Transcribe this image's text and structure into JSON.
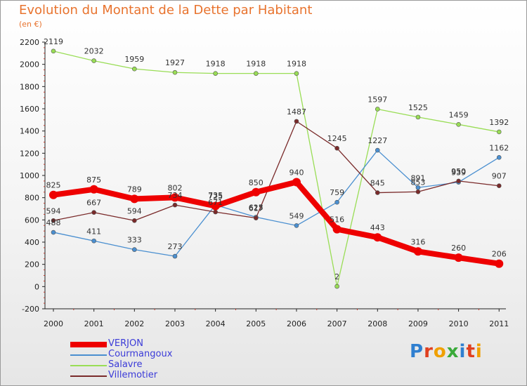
{
  "chart_data": {
    "type": "line",
    "title": "Evolution du Montant de la Dette par Habitant",
    "subtitle": "(en €)",
    "categories": [
      "2000",
      "2001",
      "2002",
      "2003",
      "2004",
      "2005",
      "2006",
      "2007",
      "2008",
      "2009",
      "2010",
      "2011"
    ],
    "ylim": [
      -200,
      2200
    ],
    "yticks": [
      -200,
      0,
      200,
      400,
      600,
      800,
      1000,
      1200,
      1400,
      1600,
      1800,
      2000,
      2200
    ],
    "grid": false,
    "legend_position": "bottom-left",
    "series": [
      {
        "name": "VERJON",
        "color": "#ee0000",
        "width": 8,
        "values": [
          825,
          875,
          789,
          802,
          725,
          850,
          940,
          516,
          443,
          316,
          260,
          206
        ]
      },
      {
        "name": "Courmangoux",
        "color": "#4a8fd0",
        "width": 1.3,
        "values": [
          488,
          411,
          333,
          273,
          735,
          625,
          549,
          759,
          1227,
          891,
          939,
          1162
        ]
      },
      {
        "name": "Salavre",
        "color": "#99dd55",
        "width": 1.3,
        "values": [
          2119,
          2032,
          1959,
          1927,
          1918,
          1918,
          1918,
          2,
          1597,
          1525,
          1459,
          1392
        ]
      },
      {
        "name": "Villemotier",
        "color": "#7a2a2a",
        "width": 1.3,
        "values": [
          594,
          667,
          594,
          734,
          671,
          617,
          1487,
          1245,
          845,
          853,
          950,
          907
        ]
      }
    ]
  },
  "logo": {
    "letters": [
      "P",
      "r",
      "o",
      "x",
      "i",
      "t",
      "i"
    ],
    "colors": [
      "#2f7fd0",
      "#e04020",
      "#f0a000",
      "#3aaa3a",
      "#2f7fd0",
      "#e04020",
      "#f0a000"
    ]
  }
}
